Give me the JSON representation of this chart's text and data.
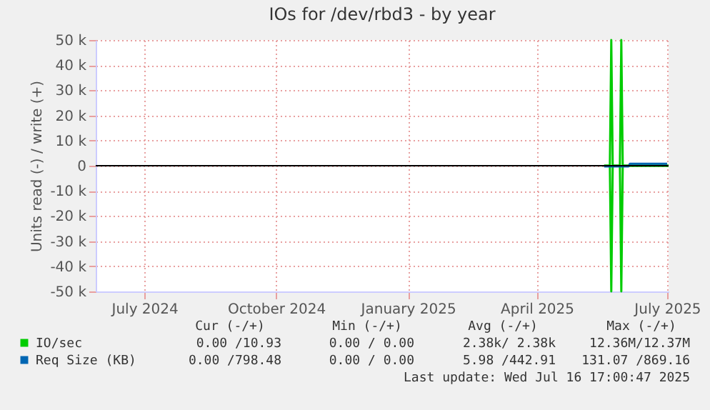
{
  "chart_data": {
    "type": "line",
    "title": "IOs for /dev/rbd3 - by year",
    "ylabel": "Units read (-) / write (+)",
    "xlim": [
      "2024-06-11",
      "2025-07-16"
    ],
    "xticks": [
      {
        "value": "2024-07-15",
        "label": "July 2024"
      },
      {
        "value": "2024-10-15",
        "label": "October 2024"
      },
      {
        "value": "2025-01-15",
        "label": "January 2025"
      },
      {
        "value": "2025-04-15",
        "label": "April 2025"
      },
      {
        "value": "2025-07-15",
        "label": "July 2025"
      }
    ],
    "ylim": [
      -50000,
      50000
    ],
    "yticks": [
      {
        "value": -50000,
        "label": "-50 k"
      },
      {
        "value": -40000,
        "label": "-40 k"
      },
      {
        "value": -30000,
        "label": "-30 k"
      },
      {
        "value": -20000,
        "label": "-20 k"
      },
      {
        "value": -10000,
        "label": "-10 k"
      },
      0,
      {
        "value": 10000,
        "label": "10 k"
      },
      {
        "value": 20000,
        "label": "20 k"
      },
      {
        "value": 30000,
        "label": "30 k"
      },
      {
        "value": 40000,
        "label": "40 k"
      },
      {
        "value": 50000,
        "label": "50 k"
      }
    ],
    "grid": true,
    "legend": "bottom",
    "ref_lines": [
      {
        "axis": "y",
        "value": 0,
        "color": "#000000"
      }
    ],
    "series": [
      {
        "name": "IO/sec",
        "color": "#00cc00",
        "x": [
          "2025-06-01",
          "2025-06-05",
          "2025-06-06",
          "2025-06-07",
          "2025-06-12",
          "2025-06-13",
          "2025-06-14",
          "2025-07-16"
        ],
        "values": [
          0,
          0,
          50000,
          0,
          0,
          50000,
          0,
          0
        ]
      },
      {
        "color": "#00cc00",
        "x": [
          "2025-06-01",
          "2025-06-05",
          "2025-06-06",
          "2025-06-07",
          "2025-06-12",
          "2025-06-13",
          "2025-06-14",
          "2025-07-16"
        ],
        "values": [
          0,
          0,
          -50000,
          0,
          0,
          -50000,
          0,
          0
        ]
      },
      {
        "name": "Req Size (KB)",
        "color": "#0066b3",
        "x": [
          "2025-06-01",
          "2025-06-18",
          "2025-06-19",
          "2025-07-15"
        ],
        "values": [
          -300,
          -300,
          800,
          800
        ]
      }
    ],
    "annotations": [
      "Cur (-/+)",
      "Min (-/+)",
      "Avg (-/+)",
      "Max (-/+)",
      "0.00 /10.93",
      "0.00 / 0.00",
      "2.38k/ 2.38k",
      "12.36M/12.37M",
      "0.00 /798.48",
      "0.00 / 0.00",
      "5.98 /442.91",
      "131.07 /869.16",
      "Last update: Wed Jul 16 17:00:47 2025"
    ]
  }
}
